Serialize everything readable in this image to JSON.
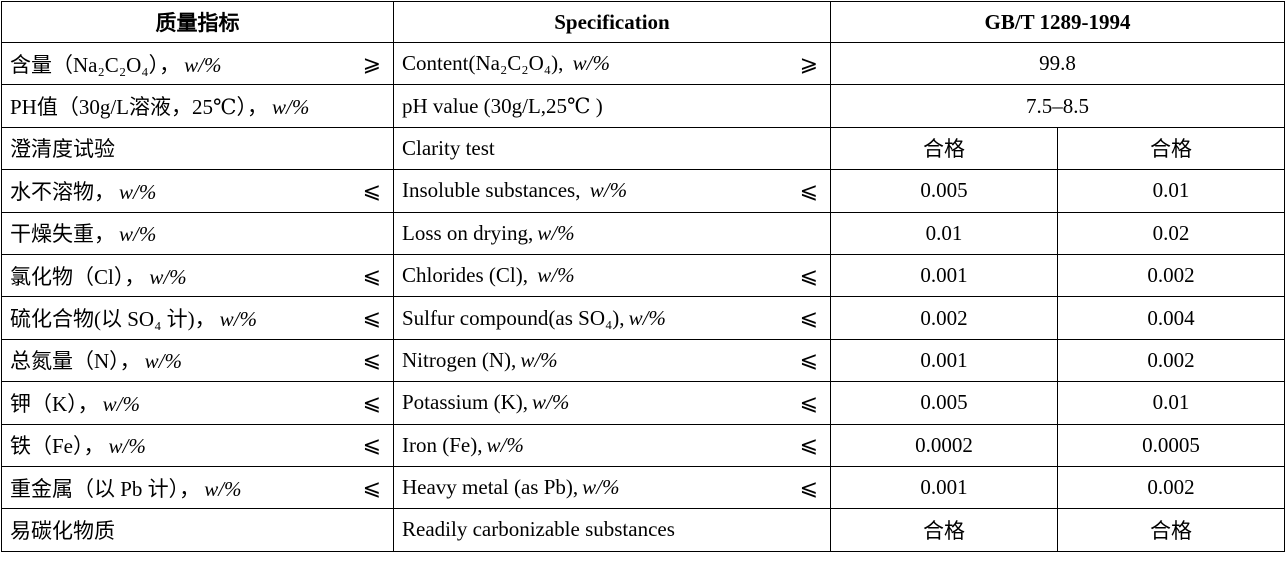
{
  "table": {
    "header": [
      "质量指标",
      "Specification",
      "GB/T 1289-1994"
    ],
    "rows": [
      {
        "cn": "含量（Na₂C₂O₄），",
        "cn_unit": "w/%",
        "cn_sign": "⩾",
        "en": "Content(Na₂C₂O₄), ",
        "en_unit": "w/%",
        "en_sign": "⩾",
        "values": [
          "99.8"
        ]
      },
      {
        "cn": "PH值（30g/L溶液，25℃），",
        "cn_unit": "w/%",
        "en": "pH value (30g/L,25℃ )",
        "values": [
          "7.5–8.5"
        ]
      },
      {
        "cn": "澄清度试验",
        "en": "Clarity test",
        "values": [
          "合格",
          "合格"
        ]
      },
      {
        "cn": "水不溶物，",
        "cn_unit": "w/%",
        "cn_sign": "⩽",
        "en": "Insoluble substances, ",
        "en_unit": "w/%",
        "en_sign": "⩽",
        "values": [
          "0.005",
          "0.01"
        ]
      },
      {
        "cn": "干燥失重，",
        "cn_unit": "w/%",
        "en": "Loss on drying,",
        "en_unit": "w/%",
        "values": [
          "0.01",
          "0.02"
        ]
      },
      {
        "cn": "氯化物（Cl），",
        "cn_unit": "w/%",
        "cn_sign": "⩽",
        "en": "Chlorides (Cl), ",
        "en_unit": "w/%",
        "en_sign": "⩽",
        "values": [
          "0.001",
          "0.002"
        ]
      },
      {
        "cn": "硫化合物(以 SO₄ 计)，",
        "cn_unit": "w/%",
        "cn_sign": "⩽",
        "en": "Sulfur compound(as SO₄),",
        "en_unit": "w/%",
        "en_sign": "⩽",
        "values": [
          "0.002",
          "0.004"
        ]
      },
      {
        "cn": "总氮量（N），",
        "cn_unit": "w/%",
        "cn_sign": "⩽",
        "en": "Nitrogen (N),",
        "en_unit": "w/%",
        "en_sign": "⩽",
        "values": [
          "0.001",
          "0.002"
        ]
      },
      {
        "cn": "钾（K），",
        "cn_unit": "w/%",
        "cn_sign": "⩽",
        "en": "Potassium (K),",
        "en_unit": "w/%",
        "en_sign": "⩽",
        "values": [
          "0.005",
          "0.01"
        ]
      },
      {
        "cn": "铁（Fe），",
        "cn_unit": "w/%",
        "cn_sign": "⩽",
        "en": "Iron (Fe),",
        "en_unit": "w/%",
        "en_sign": "⩽",
        "values": [
          "0.0002",
          "0.0005"
        ]
      },
      {
        "cn": "重金属（以 Pb 计），",
        "cn_unit": "w/%",
        "cn_sign": "⩽",
        "en": "Heavy metal (as Pb),",
        "en_unit": "w/%",
        "en_sign": "⩽",
        "values": [
          "0.001",
          "0.002"
        ]
      },
      {
        "cn": "易碳化物质",
        "en": "Readily carbonizable substances",
        "values": [
          "合格",
          "合格"
        ]
      }
    ]
  }
}
